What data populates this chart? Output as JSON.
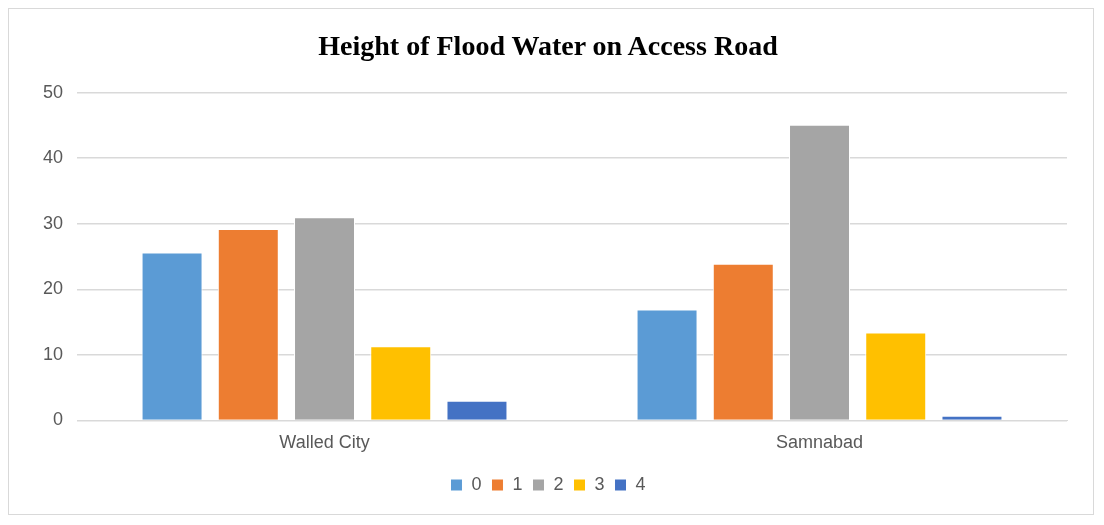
{
  "chart_data": {
    "type": "bar",
    "title": "Height of Flood Water on Access Road",
    "categories": [
      "Walled City",
      "Samnabad"
    ],
    "series": [
      {
        "name": "0",
        "color": "#5b9bd5",
        "values": [
          25.6,
          16.9
        ]
      },
      {
        "name": "1",
        "color": "#ed7d31",
        "values": [
          29.2,
          23.9
        ]
      },
      {
        "name": "2",
        "color": "#a5a5a5",
        "values": [
          31.0,
          45.1
        ]
      },
      {
        "name": "3",
        "color": "#ffc000",
        "values": [
          11.3,
          13.4
        ]
      },
      {
        "name": "4",
        "color": "#4472c4",
        "values": [
          3.0,
          0.7
        ]
      }
    ],
    "ylim": [
      0,
      50
    ],
    "yticks": [
      0,
      10,
      20,
      30,
      40,
      50
    ],
    "grid": "y",
    "legend": "bottom"
  }
}
